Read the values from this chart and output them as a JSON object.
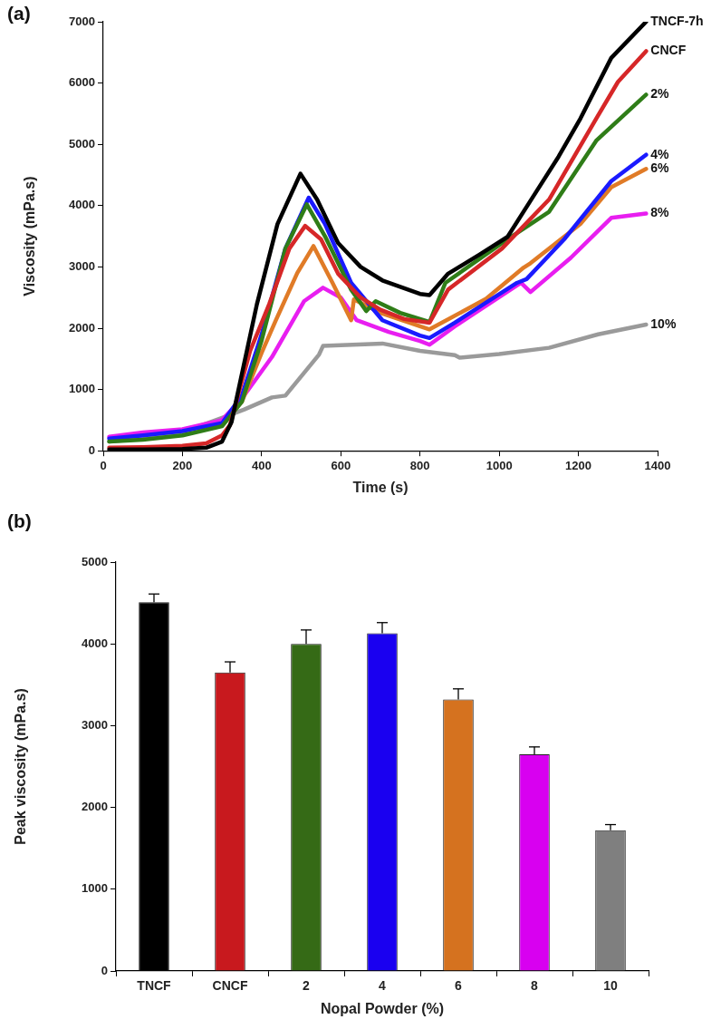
{
  "chart_data": [
    {
      "type": "line",
      "title": "(a)",
      "xlabel": "Time (s)",
      "ylabel": "Viscosity (mPa.s)",
      "xlim": [
        0,
        1400
      ],
      "xticks": [
        0,
        200,
        400,
        600,
        800,
        1000,
        1200,
        1400
      ],
      "ylim": [
        0,
        7000
      ],
      "yticks": [
        0,
        1000,
        2000,
        3000,
        4000,
        5000,
        6000,
        7000
      ],
      "grid": false,
      "legend": false,
      "marker": "none",
      "line_style": "solid",
      "series": [
        {
          "name": "TNCF-7h",
          "color": "#000000",
          "x": [
            15,
            100,
            200,
            260,
            300,
            324,
            388,
            440,
            498,
            540,
            593,
            650,
            705,
            800,
            824,
            871,
            950,
            1021,
            1086,
            1150,
            1205,
            1283,
            1371
          ],
          "values": [
            20,
            20,
            30,
            50,
            150,
            470,
            2390,
            3700,
            4520,
            4100,
            3390,
            3000,
            2780,
            2560,
            2540,
            2890,
            3200,
            3490,
            4150,
            4800,
            5420,
            6410,
            7000
          ]
        },
        {
          "name": "CNCF",
          "color": "#d62728",
          "x": [
            15,
            100,
            200,
            260,
            300,
            320,
            371,
            419,
            470,
            510,
            550,
            593,
            650,
            700,
            760,
            824,
            871,
            1007,
            1126,
            1245,
            1300,
            1371
          ],
          "values": [
            50,
            60,
            80,
            120,
            250,
            420,
            1630,
            2390,
            3300,
            3670,
            3450,
            2890,
            2500,
            2300,
            2150,
            2090,
            2630,
            3300,
            4100,
            5420,
            6020,
            6520
          ]
        },
        {
          "name": "2%",
          "color": "#2f7d18",
          "x": [
            15,
            100,
            200,
            300,
            350,
            400,
            460,
            514,
            560,
            626,
            664,
            688,
            750,
            824,
            864,
            1021,
            1126,
            1245,
            1371
          ],
          "values": [
            150,
            180,
            250,
            400,
            800,
            1800,
            3300,
            4020,
            3500,
            2630,
            2280,
            2440,
            2250,
            2100,
            2740,
            3450,
            3900,
            5060,
            5810
          ]
        },
        {
          "name": "4%",
          "color": "#1a1aff",
          "x": [
            15,
            100,
            200,
            300,
            350,
            400,
            460,
            519,
            560,
            626,
            705,
            800,
            824,
            888,
            1045,
            1069,
            1164,
            1283,
            1371
          ],
          "values": [
            200,
            250,
            320,
            450,
            900,
            1900,
            3300,
            4130,
            3700,
            2740,
            2130,
            1880,
            1840,
            2090,
            2740,
            2800,
            3450,
            4400,
            4830
          ]
        },
        {
          "name": "6%",
          "color": "#e07b27",
          "x": [
            300,
            350,
            400,
            436,
            490,
            531,
            579,
            626,
            633,
            700,
            800,
            824,
            967,
            1062,
            1079,
            1205,
            1283,
            1371
          ],
          "values": [
            420,
            800,
            1600,
            2130,
            2900,
            3340,
            2740,
            2130,
            2470,
            2250,
            2030,
            1980,
            2480,
            2990,
            3060,
            3700,
            4300,
            4600
          ]
        },
        {
          "name": "8%",
          "color": "#e81ef0",
          "x": [
            15,
            100,
            200,
            300,
            350,
            426,
            507,
            555,
            600,
            640,
            721,
            800,
            824,
            888,
            1055,
            1079,
            1181,
            1283,
            1371
          ],
          "values": [
            230,
            300,
            350,
            500,
            850,
            1530,
            2440,
            2660,
            2500,
            2130,
            1940,
            1790,
            1730,
            2030,
            2740,
            2590,
            3150,
            3800,
            3870
          ]
        },
        {
          "name": "10%",
          "color": "#9a9a9a",
          "x": [
            15,
            100,
            200,
            355,
            426,
            460,
            545,
            555,
            705,
            800,
            888,
            900,
            1000,
            1126,
            1250,
            1371
          ],
          "values": [
            150,
            200,
            300,
            670,
            870,
            900,
            1570,
            1710,
            1750,
            1630,
            1560,
            1520,
            1580,
            1680,
            1900,
            2060
          ]
        }
      ]
    },
    {
      "type": "bar",
      "title": "(b)",
      "xlabel": "Nopal Powder (%)",
      "ylabel": "Peak viscosity (mPa.s)",
      "categories": [
        "TNCF",
        "CNCF",
        "2",
        "4",
        "6",
        "8",
        "10"
      ],
      "values": [
        4510,
        3650,
        4000,
        4130,
        3320,
        2650,
        1720
      ],
      "errors": [
        [
          4510,
          4610
        ],
        [
          3650,
          3780
        ],
        [
          4000,
          4170
        ],
        [
          4130,
          4260
        ],
        [
          3320,
          3450
        ],
        [
          2650,
          2740
        ],
        [
          1720,
          1790
        ]
      ],
      "colors": [
        "#000000",
        "#c8191e",
        "#356a16",
        "#1a00f0",
        "#d5721f",
        "#d800f0",
        "#7f7f7f"
      ],
      "ylim": [
        0,
        5000
      ],
      "yticks": [
        0,
        1000,
        2000,
        3000,
        4000,
        5000
      ],
      "grid": false,
      "legend": false
    }
  ]
}
